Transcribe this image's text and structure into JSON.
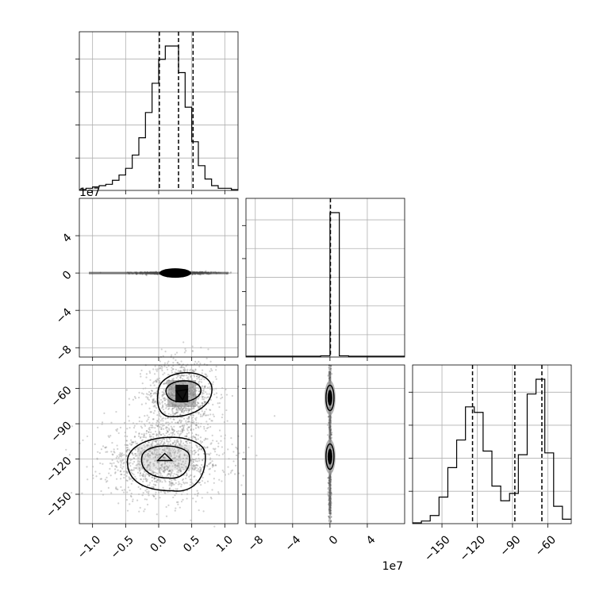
{
  "chart_data": {
    "type": "corner",
    "histogram_1": {
      "bin_edges": [
        -1.2,
        -1.1,
        -1.0,
        -0.9,
        -0.8,
        -0.7,
        -0.6,
        -0.5,
        -0.4,
        -0.3,
        -0.2,
        -0.1,
        0.0,
        0.1,
        0.2,
        0.3,
        0.4,
        0.5,
        0.6,
        0.7,
        0.8,
        0.9,
        1.0,
        1.1,
        1.2
      ],
      "counts": [
        0,
        1,
        2,
        3,
        4,
        7,
        11,
        16,
        26,
        39,
        58,
        80,
        98,
        108,
        108,
        88,
        62,
        36,
        18,
        8,
        3,
        1,
        1,
        0
      ],
      "quantiles": [
        0.01,
        0.3,
        0.52
      ],
      "xlim": [
        -1.2,
        1.2
      ],
      "xticks": [
        "−1.0",
        "−0.5",
        "0.0",
        "0.5",
        "1.0"
      ]
    },
    "histogram_2": {
      "bin_edges": [
        -9,
        -8,
        -7,
        -6,
        -5,
        -4,
        -3,
        -2,
        -1,
        0,
        1,
        2,
        3,
        4,
        5,
        6,
        7,
        8
      ],
      "counts": [
        0,
        0,
        0,
        0,
        0,
        0,
        0,
        0,
        0.3,
        100,
        0.3,
        0,
        0,
        0,
        0,
        0,
        0,
        0
      ],
      "quantiles": [
        0.05
      ],
      "xlim": [
        -9,
        8
      ],
      "xticks": [
        "−8",
        "−4",
        "0",
        "4"
      ],
      "offset_label": "1e7"
    },
    "histogram_3": {
      "bin_edges": [
        -175,
        -167.5,
        -160,
        -152.5,
        -145,
        -137.5,
        -130,
        -122.5,
        -115,
        -107.5,
        -100,
        -92.5,
        -85,
        -77.5,
        -70,
        -62.5,
        -55,
        -47.5,
        -40
      ],
      "counts": [
        0,
        1,
        4,
        14,
        30,
        45,
        63,
        60,
        39,
        20,
        12,
        16,
        37,
        70,
        78,
        38,
        9,
        2
      ],
      "quantiles": [
        -124,
        -88,
        -65
      ],
      "xlim": [
        -175,
        -40
      ],
      "xticks": [
        "−150",
        "−120",
        "−90",
        "−60"
      ]
    },
    "scatter_2v1": {
      "x_range": [
        -1.2,
        1.2
      ],
      "y_range": [
        -9,
        8
      ],
      "y_offset_label": "1e7",
      "yticks": [
        "4",
        "0",
        "−4",
        "−8"
      ],
      "blob": {
        "x_center": 0.25,
        "y_center": 0,
        "x_spread": 0.9,
        "y_spread": 0.6
      }
    },
    "scatter_3v1": {
      "x_range": [
        -1.2,
        1.2
      ],
      "y_range": [
        -175,
        -40
      ],
      "yticks": [
        "−60",
        "−90",
        "−120",
        "−150"
      ],
      "modes": [
        {
          "x_center": 0.35,
          "y_center": -65,
          "x_sd": 0.19,
          "y_sd": 11
        },
        {
          "x_center": 0.08,
          "y_center": -120,
          "x_sd": 0.33,
          "y_sd": 12
        }
      ]
    },
    "scatter_3v2": {
      "x_range": [
        -9,
        8
      ],
      "y_range": [
        -175,
        -40
      ],
      "x_offset_label": "1e7",
      "modes": [
        {
          "x_center": 0,
          "y_center": -68
        },
        {
          "x_center": 0,
          "y_center": -118
        }
      ]
    },
    "grid": true
  }
}
